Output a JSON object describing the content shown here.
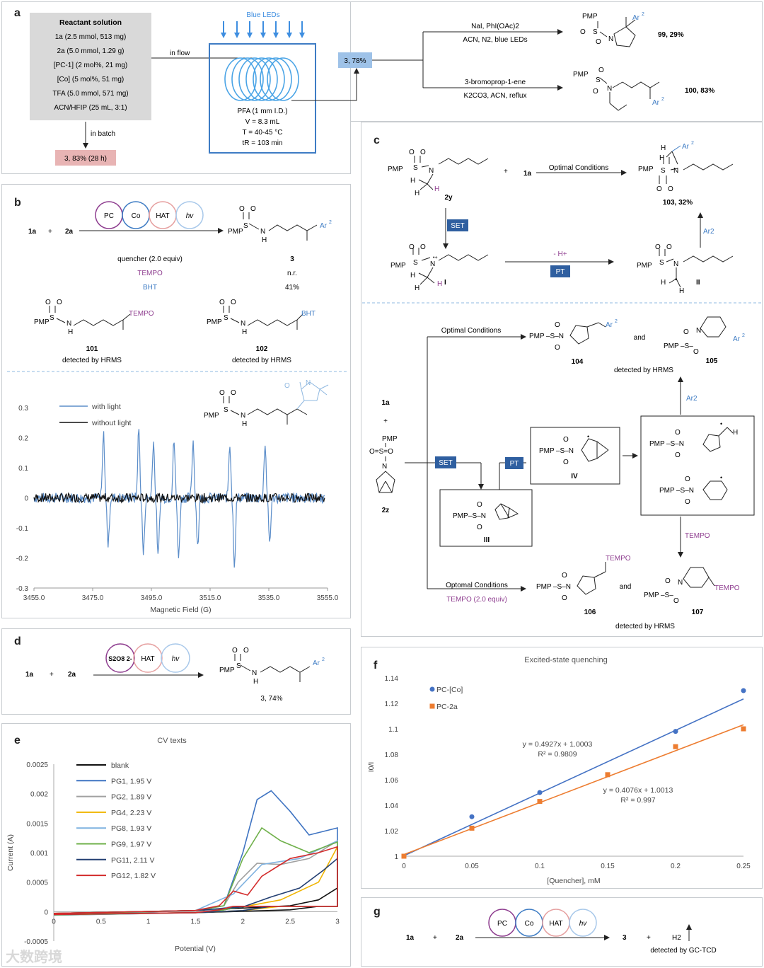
{
  "panels": {
    "a": "a",
    "b": "b",
    "c": "c",
    "d": "d",
    "e": "e",
    "f": "f",
    "g": "g"
  },
  "a": {
    "box_title": "Reactant solution",
    "box_lines": [
      "1a (2.5 mmol, 513 mg)",
      "2a (5.0 mmol, 1.29 g)",
      "[PC-1] (2 mol%, 21 mg)",
      "[Co] (5 mol%, 51 mg)",
      "TFA (5.0 mmol, 571 mg)",
      "ACN/HFIP (25 mL, 3:1)"
    ],
    "in_flow": "in flow",
    "in_batch": "in batch",
    "batch_result": "3, 83% (28 h)",
    "leds": "Blue LEDs",
    "reactor": [
      "PFA (1 mm I.D.)",
      "V = 8.3 mL",
      "T = 40-45 °C",
      "tR = 103 min"
    ],
    "flow_result": "3, 78%",
    "cond1_top": "NaI, PhI(OAc)2",
    "cond1_bottom": "ACN, N2, blue LEDs",
    "prod1": "99, 29%",
    "cond2_top": "3-bromoprop-1-ene",
    "cond2_bottom": "K2CO3, ACN, reflux",
    "prod2": "100, 83%"
  },
  "b": {
    "catalysts": [
      "PC",
      "Co",
      "HAT",
      "hv"
    ],
    "r1": "1a",
    "plus": "+",
    "r2": "2a",
    "product": "3",
    "table_header": [
      "quencher (2.0 equiv)",
      "3"
    ],
    "rows": [
      {
        "q": "TEMPO",
        "v": "n.r."
      },
      {
        "q": "BHT",
        "v": "41%"
      }
    ],
    "adduct1": "101",
    "adduct1_note": "detected by HRMS",
    "adduct2": "102",
    "adduct2_note": "detected by HRMS",
    "tempo": "TEMPO",
    "bht": "BHT"
  },
  "c": {
    "reactant": "2y",
    "plus": "+",
    "r1": "1a",
    "cond": "Optimal Conditions",
    "prod": "103, 32%",
    "set": "SET",
    "pt": "PT",
    "minus_h": "- H+",
    "int1": "I",
    "int2": "II",
    "ar2": "Ar2",
    "r1b": "1a",
    "substrate": "2z",
    "cond_top": "Optimal Conditions",
    "prod104": "104",
    "and": "and",
    "prod105": "105",
    "hrms": "detected by HRMS",
    "int3": "III",
    "int4": "IV",
    "tempo": "TEMPO",
    "cond_bot": "Optomal Conditions",
    "cond_bot2": "TEMPO (2.0 equiv)",
    "prod106": "106",
    "prod107": "107",
    "hrms2": "detected by HRMS"
  },
  "d": {
    "catalysts": [
      "S2O8 2-",
      "HAT",
      "hv"
    ],
    "r1": "1a",
    "r2": "2a",
    "prod": "3, 74%"
  },
  "g": {
    "catalysts": [
      "PC",
      "Co",
      "HAT",
      "hv"
    ],
    "r1": "1a",
    "r2": "2a",
    "prod": "3",
    "h2": "H2",
    "note": "detected by GC-TCD"
  },
  "epr_chart": {
    "type": "line",
    "xlabel": "Magnetic Field (G)",
    "x_ticks": [
      "3455.0",
      "3475.0",
      "3495.0",
      "3515.0",
      "3535.0",
      "3555.0"
    ],
    "y_ticks": [
      "0.3",
      "0.2",
      "0.1",
      "0",
      "-0.1",
      "-0.2",
      "-0.3"
    ],
    "xlim": [
      3455,
      3555
    ],
    "ylim": [
      -0.3,
      0.3
    ],
    "legend": [
      "with light",
      "without light"
    ],
    "colors": [
      "#5b8dc9",
      "#111111"
    ],
    "peaks": [
      {
        "x": 3479.5,
        "up": 0.21,
        "down": -0.16
      },
      {
        "x": 3491.5,
        "up": 0.23,
        "down": -0.19
      },
      {
        "x": 3496.5,
        "up": 0.19,
        "down": -0.2
      },
      {
        "x": 3503.5,
        "up": 0.19,
        "down": -0.2
      },
      {
        "x": 3510.0,
        "up": 0.19,
        "down": -0.16
      },
      {
        "x": 3522.5,
        "up": 0.18,
        "down": -0.22
      },
      {
        "x": 3534.5,
        "up": 0.18,
        "down": -0.15
      }
    ]
  },
  "chart_data": [
    {
      "type": "line",
      "title": "CV texts",
      "xlabel": "Potential (V)",
      "ylabel": "Current (A)",
      "xlim": [
        0,
        3
      ],
      "ylim": [
        -0.0005,
        0.0025
      ],
      "x_ticks": [
        "0",
        "0.5",
        "1",
        "1.5",
        "2",
        "2.5",
        "3"
      ],
      "y_ticks": [
        "0.0025",
        "0.002",
        "0.0015",
        "0.001",
        "0.0005",
        "0",
        "-0.0005"
      ],
      "series": [
        {
          "name": "blank",
          "color": "#111111",
          "x": [
            0,
            1.5,
            2.5,
            2.8,
            3.0
          ],
          "y": [
            -3e-05,
            2e-05,
            0.0001,
            0.0002,
            0.0004
          ]
        },
        {
          "name": "PG1, 1.95 V",
          "color": "#3f74c2",
          "x": [
            0,
            1.5,
            1.8,
            2.0,
            2.15,
            2.3,
            2.5,
            2.7,
            3.0
          ],
          "y": [
            -5e-05,
            2e-05,
            0.0001,
            0.001,
            0.0019,
            0.00205,
            0.0017,
            0.0013,
            0.00142
          ]
        },
        {
          "name": "PG2, 1.89 V",
          "color": "#a0a0a0",
          "x": [
            0,
            1.5,
            1.8,
            1.95,
            2.15,
            2.4,
            2.7,
            3.0
          ],
          "y": [
            -5e-05,
            2e-05,
            0.0001,
            0.0005,
            0.00082,
            0.0008,
            0.0009,
            0.0012
          ]
        },
        {
          "name": "PG4, 2.23 V",
          "color": "#f0b400",
          "x": [
            0,
            1.5,
            2.0,
            2.4,
            2.8,
            3.0
          ],
          "y": [
            -3e-05,
            2e-05,
            8e-05,
            0.0002,
            0.0005,
            0.0011
          ]
        },
        {
          "name": "PG8, 1.93 V",
          "color": "#7fb2e0",
          "x": [
            0,
            1.5,
            1.9,
            2.2,
            2.6,
            3.0
          ],
          "y": [
            -4e-05,
            2e-05,
            0.0003,
            0.0008,
            0.0009,
            0.0012
          ]
        },
        {
          "name": "PG9, 1.97 V",
          "color": "#6fb04a",
          "x": [
            0,
            1.5,
            1.8,
            2.0,
            2.2,
            2.4,
            2.7,
            3.0
          ],
          "y": [
            -4e-05,
            2e-05,
            0.0001,
            0.0009,
            0.00142,
            0.0012,
            0.001,
            0.00118
          ]
        },
        {
          "name": "PG11, 2.11 V",
          "color": "#233f72",
          "x": [
            0,
            1.5,
            2.0,
            2.3,
            2.6,
            2.85,
            3.0
          ],
          "y": [
            -3e-05,
            2e-05,
            8e-05,
            0.00025,
            0.0004,
            0.0007,
            0.0009
          ]
        },
        {
          "name": "PG12, 1.82 V",
          "color": "#d32b2b",
          "x": [
            0,
            1.5,
            1.75,
            1.9,
            2.05,
            2.2,
            2.5,
            2.8,
            3.0
          ],
          "y": [
            -3e-05,
            2e-05,
            0.0001,
            0.00035,
            0.00028,
            0.0006,
            0.0009,
            0.001,
            0.0011
          ]
        }
      ]
    },
    {
      "type": "scatter",
      "title": "Excited-state quenching",
      "xlabel": "[Quencher], mM",
      "ylabel": "I0/I",
      "xlim": [
        0,
        0.25
      ],
      "ylim": [
        1,
        1.14
      ],
      "x_ticks": [
        "0",
        "0.05",
        "0.1",
        "0.15",
        "0.2",
        "0.25"
      ],
      "y_ticks": [
        "1.14",
        "1.12",
        "1.1",
        "1.08",
        "1.06",
        "1.04",
        "1.02",
        "1"
      ],
      "series": [
        {
          "name": "PC-[Co]",
          "color": "#4472c4",
          "x": [
            0,
            0.05,
            0.1,
            0.2,
            0.25
          ],
          "y": [
            1.0,
            1.031,
            1.05,
            1.098,
            1.13
          ],
          "fit": {
            "slope": 0.4927,
            "intercept": 1.0003
          },
          "eq": "y = 0.4927x + 1.0003",
          "r2": "R² = 0.9809"
        },
        {
          "name": "PC-2a",
          "color": "#ed7d31",
          "x": [
            0,
            0.05,
            0.1,
            0.15,
            0.2,
            0.25
          ],
          "y": [
            1.0,
            1.022,
            1.043,
            1.064,
            1.086,
            1.1
          ],
          "fit": {
            "slope": 0.4076,
            "intercept": 1.0013
          },
          "eq": "y = 0.4076x + 1.0013",
          "r2": "R² = 0.997"
        }
      ]
    }
  ],
  "watermark": "大数跨境"
}
